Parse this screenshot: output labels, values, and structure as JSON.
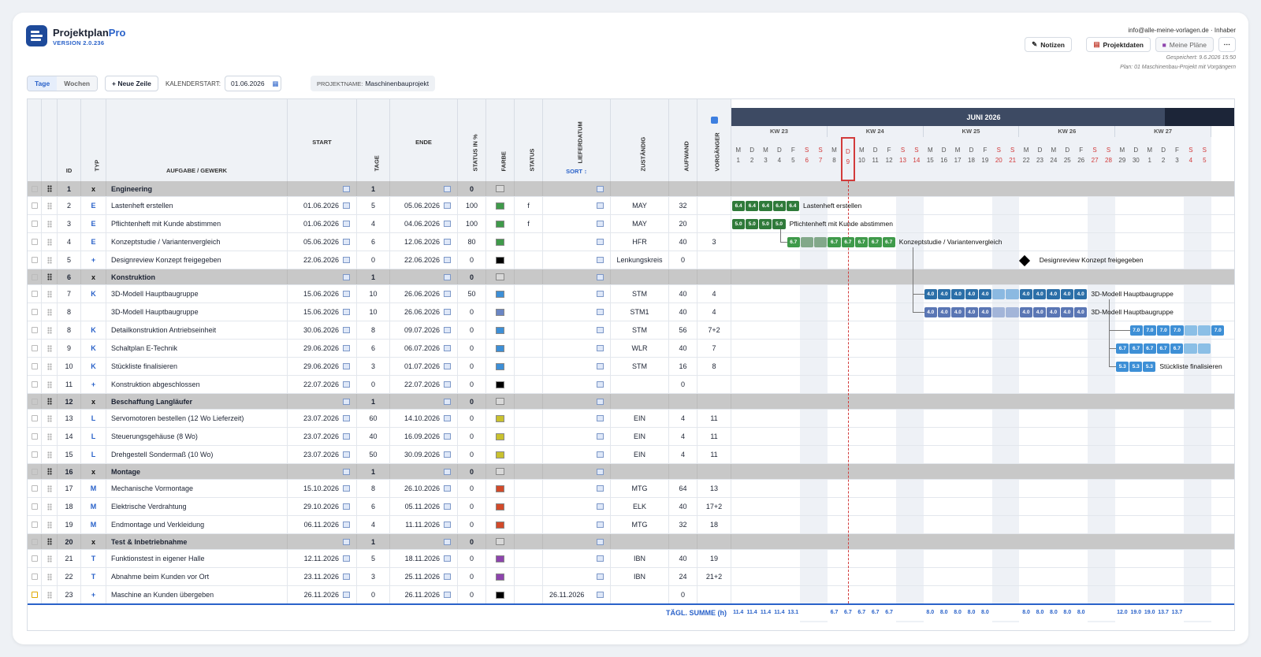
{
  "app": {
    "name": "Projektplan",
    "name_accent": "Pro",
    "version": "VERSION 2.0.236",
    "email": "info@alle-meine-vorlagen.de · Inhaber",
    "saved": "Gespeichert: 9.6.2026 15:50",
    "plan": "Plan: 01 Maschinenbau-Projekt mit Vorgängern"
  },
  "toolbar": {
    "notes": "Notizen",
    "projectdata": "Projektdaten",
    "myplans": "Meine Pläne",
    "more": "⋯"
  },
  "controls": {
    "days": "Tage",
    "weeks": "Wochen",
    "new_row": "+ Neue Zeile",
    "cal_label": "KALENDERSTART:",
    "cal_value": "01.06.2026",
    "proj_label": "PROJEKTNAME:",
    "proj_value": "Maschinenbauprojekt"
  },
  "columns": {
    "id": "ID",
    "typ": "TYP",
    "task": "AUFGABE / GEWERK",
    "start": "START",
    "tage": "TAGE",
    "ende": "ENDE",
    "status_pct": "STATUS IN %",
    "farbe": "FARBE",
    "status": "STATUS",
    "lieferdatum": "LIEFERDATUM",
    "sort": "SORT ↕",
    "zustaendig": "ZUSTÄNDIG",
    "aufwand": "AUFWAND",
    "vorgaenger": "VORGÄNGER"
  },
  "rows": [
    {
      "id": "1",
      "typ": "x",
      "task": "Engineering",
      "tage": "1",
      "pct": "0",
      "color": "#d8d8d8",
      "grp": true
    },
    {
      "id": "2",
      "typ": "E",
      "task": "Lastenheft erstellen",
      "start": "01.06.2026",
      "tage": "5",
      "ende": "05.06.2026",
      "pct": "100",
      "color": "#3f9a4a",
      "status": "f",
      "who": "MAY",
      "auf": "32",
      "vor": ""
    },
    {
      "id": "3",
      "typ": "E",
      "task": "Pflichtenheft mit Kunde abstimmen",
      "start": "01.06.2026",
      "tage": "4",
      "ende": "04.06.2026",
      "pct": "100",
      "color": "#3f9a4a",
      "status": "f",
      "who": "MAY",
      "auf": "20",
      "vor": ""
    },
    {
      "id": "4",
      "typ": "E",
      "task": "Konzeptstudie / Variantenvergleich",
      "start": "05.06.2026",
      "tage": "6",
      "ende": "12.06.2026",
      "pct": "80",
      "color": "#3f9a4a",
      "status": "",
      "who": "HFR",
      "auf": "40",
      "vor": "3"
    },
    {
      "id": "5",
      "typ": "+",
      "task": "Designreview Konzept freigegeben",
      "start": "22.06.2026",
      "tage": "0",
      "ende": "22.06.2026",
      "pct": "0",
      "color": "#000000",
      "status": "",
      "who": "Lenkungskreis",
      "auf": "0",
      "vor": ""
    },
    {
      "id": "6",
      "typ": "x",
      "task": "Konstruktion",
      "tage": "1",
      "pct": "0",
      "color": "#d8d8d8",
      "grp": true
    },
    {
      "id": "7",
      "typ": "K",
      "task": "3D-Modell Hauptbaugruppe",
      "start": "15.06.2026",
      "tage": "10",
      "ende": "26.06.2026",
      "pct": "50",
      "color": "#3d8fd6",
      "status": "",
      "who": "STM",
      "auf": "40",
      "vor": "4"
    },
    {
      "id": "8",
      "typ": "",
      "task": "3D-Modell Hauptbaugruppe",
      "start": "15.06.2026",
      "tage": "10",
      "ende": "26.06.2026",
      "pct": "0",
      "color": "#6a86c4",
      "status": "",
      "who": "STM1",
      "auf": "40",
      "vor": "4"
    },
    {
      "id": "8",
      "typ": "K",
      "task": "Detailkonstruktion Antriebseinheit",
      "start": "30.06.2026",
      "tage": "8",
      "ende": "09.07.2026",
      "pct": "0",
      "color": "#3d8fd6",
      "status": "",
      "who": "STM",
      "auf": "56",
      "vor": "7+2"
    },
    {
      "id": "9",
      "typ": "K",
      "task": "Schaltplan E-Technik",
      "start": "29.06.2026",
      "tage": "6",
      "ende": "06.07.2026",
      "pct": "0",
      "color": "#3d8fd6",
      "status": "",
      "who": "WLR",
      "auf": "40",
      "vor": "7"
    },
    {
      "id": "10",
      "typ": "K",
      "task": "Stückliste finalisieren",
      "start": "29.06.2026",
      "tage": "3",
      "ende": "01.07.2026",
      "pct": "0",
      "color": "#3d8fd6",
      "status": "",
      "who": "STM",
      "auf": "16",
      "vor": "8"
    },
    {
      "id": "11",
      "typ": "+",
      "task": "Konstruktion abgeschlossen",
      "start": "22.07.2026",
      "tage": "0",
      "ende": "22.07.2026",
      "pct": "0",
      "color": "#000000",
      "status": "",
      "who": "",
      "auf": "0",
      "vor": ""
    },
    {
      "id": "12",
      "typ": "x",
      "task": "Beschaffung Langläufer",
      "tage": "1",
      "pct": "0",
      "color": "#d8d8d8",
      "grp": true
    },
    {
      "id": "13",
      "typ": "L",
      "task": "Servomotoren bestellen (12 Wo Lieferzeit)",
      "start": "23.07.2026",
      "tage": "60",
      "ende": "14.10.2026",
      "pct": "0",
      "color": "#c9c12e",
      "status": "",
      "who": "EIN",
      "auf": "4",
      "vor": "11"
    },
    {
      "id": "14",
      "typ": "L",
      "task": "Steuerungsgehäuse (8 Wo)",
      "start": "23.07.2026",
      "tage": "40",
      "ende": "16.09.2026",
      "pct": "0",
      "color": "#c9c12e",
      "status": "",
      "who": "EIN",
      "auf": "4",
      "vor": "11"
    },
    {
      "id": "15",
      "typ": "L",
      "task": "Drehgestell Sondermaß (10 Wo)",
      "start": "23.07.2026",
      "tage": "50",
      "ende": "30.09.2026",
      "pct": "0",
      "color": "#c9c12e",
      "status": "",
      "who": "EIN",
      "auf": "4",
      "vor": "11"
    },
    {
      "id": "16",
      "typ": "x",
      "task": "Montage",
      "tage": "1",
      "pct": "0",
      "color": "#d8d8d8",
      "grp": true
    },
    {
      "id": "17",
      "typ": "M",
      "task": "Mechanische Vormontage",
      "start": "15.10.2026",
      "tage": "8",
      "ende": "26.10.2026",
      "pct": "0",
      "color": "#d24a2a",
      "status": "",
      "who": "MTG",
      "auf": "64",
      "vor": "13"
    },
    {
      "id": "18",
      "typ": "M",
      "task": "Elektrische Verdrahtung",
      "start": "29.10.2026",
      "tage": "6",
      "ende": "05.11.2026",
      "pct": "0",
      "color": "#d24a2a",
      "status": "",
      "who": "ELK",
      "auf": "40",
      "vor": "17+2"
    },
    {
      "id": "19",
      "typ": "M",
      "task": "Endmontage und Verkleidung",
      "start": "06.11.2026",
      "tage": "4",
      "ende": "11.11.2026",
      "pct": "0",
      "color": "#d24a2a",
      "status": "",
      "who": "MTG",
      "auf": "32",
      "vor": "18"
    },
    {
      "id": "20",
      "typ": "x",
      "task": "Test & Inbetriebnahme",
      "tage": "1",
      "pct": "0",
      "color": "#d8d8d8",
      "grp": true
    },
    {
      "id": "21",
      "typ": "T",
      "task": "Funktionstest in eigener Halle",
      "start": "12.11.2026",
      "tage": "5",
      "ende": "18.11.2026",
      "pct": "0",
      "color": "#8e44ad",
      "status": "",
      "who": "IBN",
      "auf": "40",
      "vor": "19"
    },
    {
      "id": "22",
      "typ": "T",
      "task": "Abnahme beim Kunden vor Ort",
      "start": "23.11.2026",
      "tage": "3",
      "ende": "25.11.2026",
      "pct": "0",
      "color": "#8e44ad",
      "status": "",
      "who": "IBN",
      "auf": "24",
      "vor": "21+2"
    },
    {
      "id": "23",
      "typ": "+",
      "task": "Maschine an Kunden übergeben",
      "start": "26.11.2026",
      "tage": "0",
      "ende": "26.11.2026",
      "pct": "0",
      "color": "#000000",
      "status": "",
      "who": "",
      "auf": "0",
      "vor": "",
      "liefer": "26.11.2026"
    }
  ],
  "gantt": {
    "month": "JUNI 2026",
    "weeks": [
      "KW 23",
      "KW 24",
      "KW 25",
      "KW 26",
      "KW 27"
    ],
    "days": [
      [
        "M",
        "1"
      ],
      [
        "D",
        "2"
      ],
      [
        "M",
        "3"
      ],
      [
        "D",
        "4"
      ],
      [
        "F",
        "5"
      ],
      [
        "S",
        "6"
      ],
      [
        "S",
        "7"
      ],
      [
        "M",
        "8"
      ],
      [
        "D",
        "9"
      ],
      [
        "M",
        "10"
      ],
      [
        "D",
        "11"
      ],
      [
        "F",
        "12"
      ],
      [
        "S",
        "13"
      ],
      [
        "S",
        "14"
      ],
      [
        "M",
        "15"
      ],
      [
        "D",
        "16"
      ],
      [
        "M",
        "17"
      ],
      [
        "D",
        "18"
      ],
      [
        "F",
        "19"
      ],
      [
        "S",
        "20"
      ],
      [
        "S",
        "21"
      ],
      [
        "M",
        "22"
      ],
      [
        "D",
        "23"
      ],
      [
        "M",
        "24"
      ],
      [
        "D",
        "25"
      ],
      [
        "F",
        "26"
      ],
      [
        "S",
        "27"
      ],
      [
        "S",
        "28"
      ],
      [
        "M",
        "29"
      ],
      [
        "D",
        "30"
      ],
      [
        "M",
        "1"
      ],
      [
        "D",
        "2"
      ],
      [
        "F",
        "3"
      ],
      [
        "S",
        "4"
      ],
      [
        "S",
        "5"
      ]
    ],
    "bar_labels": {
      "r2": "Lastenheft erstellen",
      "r3": "Pflichtenheft mit Kunde abstimmen",
      "r4": "Konzeptstudie / Variantenvergleich",
      "r5": "Designreview Konzept freigegeben",
      "r7": "3D-Modell Hauptbaugruppe",
      "r8": "3D-Modell Hauptbaugruppe",
      "r10": "Stückliste finalisieren"
    },
    "sum_label": "TÄGL. SUMME (h)",
    "sums": [
      "11.4",
      "11.4",
      "11.4",
      "11.4",
      "13.1",
      "",
      "",
      "6.7",
      "6.7",
      "6.7",
      "6.7",
      "6.7",
      "",
      "",
      "8.0",
      "8.0",
      "8.0",
      "8.0",
      "8.0",
      "",
      "",
      "8.0",
      "8.0",
      "8.0",
      "8.0",
      "8.0",
      "",
      "",
      "12.0",
      "19.0",
      "19.0",
      "13.7",
      "13.7",
      "",
      ""
    ]
  }
}
